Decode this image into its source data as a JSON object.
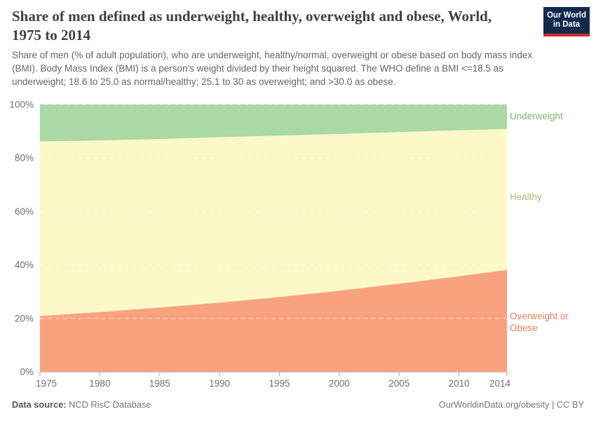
{
  "header": {
    "title": "Share of men defined as underweight, healthy, overweight and obese, World, 1975 to 2014",
    "subtitle": "Share of men (% of adult population), who are underweight, healthy/normal, overweight or obese based on body mass index (BMI). Body Mass Index (BMI) is a person's weight divided by their height squared. The WHO define a BMI <=18.5 as underweight; 18.6 to 25.0 as normal/healthy; 25.1 to 30 as overweight; and >30.0 as obese.",
    "logo": {
      "line1": "Our World",
      "line2": "in Data",
      "bg_color": "#12294e",
      "bar_color": "#c9302a"
    }
  },
  "chart_data": {
    "type": "area",
    "stacked": true,
    "title": "Share of men defined as underweight, healthy, overweight and obese, World, 1975 to 2014",
    "xlabel": "",
    "ylabel": "",
    "x": [
      1975,
      1980,
      1985,
      1990,
      1995,
      2000,
      2005,
      2010,
      2014
    ],
    "x_tick_labels": [
      "1975",
      "1980",
      "1985",
      "1990",
      "1995",
      "2000",
      "2005",
      "2010",
      "2014"
    ],
    "ylim": [
      0,
      100
    ],
    "y_ticks": [
      0,
      20,
      40,
      60,
      80,
      100
    ],
    "y_tick_labels": [
      "0%",
      "20%",
      "40%",
      "60%",
      "80%",
      "100%"
    ],
    "grid": true,
    "legend_position": "right-edge-labels",
    "series": [
      {
        "name": "Overweight or Obese",
        "color": "#faa27d",
        "label_color": "#e8815a",
        "values": [
          20.9,
          22.4,
          24.1,
          25.9,
          28.0,
          30.4,
          33.0,
          35.8,
          38.2
        ]
      },
      {
        "name": "Healthy",
        "color": "#fcf9c6",
        "label_color": "#b8b578",
        "values": [
          65.3,
          64.2,
          63.0,
          61.9,
          60.4,
          58.6,
          56.7,
          54.6,
          52.7
        ]
      },
      {
        "name": "Underweight",
        "color": "#a9d9a4",
        "label_color": "#72b86e",
        "values": [
          13.8,
          13.4,
          12.9,
          12.2,
          11.6,
          11.0,
          10.3,
          9.6,
          9.1
        ]
      }
    ],
    "axis_text_color": "#6e6e6e"
  },
  "footer": {
    "source_label": "Data source:",
    "source_value": "NCD RisC Database",
    "credit": "OurWorldinData.org/obesity | CC BY"
  }
}
